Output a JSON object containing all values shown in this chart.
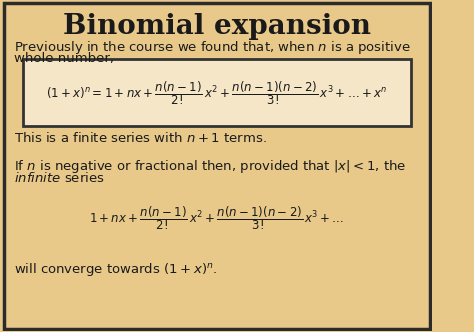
{
  "title": "Binomial expansion",
  "bg_color": "#E8C98A",
  "border_color": "#2B2B2B",
  "text_color": "#1A1A1A",
  "figsize": [
    4.74,
    3.32
  ],
  "dpi": 100,
  "line1": "Previously in the course we found that, when $n$ is a positive",
  "line2": "whole number,",
  "boxed_formula": "$(1+x)^{n} = 1 + nx + \\dfrac{n(n-1)}{2!}\\,x^{2} + \\dfrac{n(n-1)(n-2)}{3!}\\,x^{3} + \\ldots + x^{n}$",
  "line3": "This is a finite series with $n + 1$ terms.",
  "line4a": "If $n$ is negative or fractional then, provided that $|x| < 1$, the",
  "line4b": "$\\mathit{infinite}$ series",
  "formula2": "$1 + nx + \\dfrac{n(n-1)}{2!}\\,x^{2} + \\dfrac{n(n-1)(n-2)}{3!}\\,x^{3} + \\ldots$",
  "line5": "will converge towards $(1 + x)^{n}$.",
  "box_fill": "#F5E6C8",
  "box_edge": "#333333",
  "fs_title": 20,
  "fs_body": 9.5,
  "fs_formula": 8.5
}
